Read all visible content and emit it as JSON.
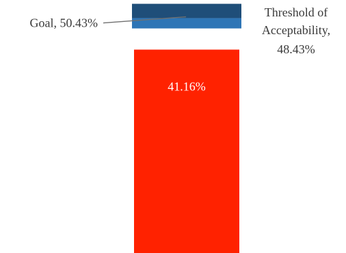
{
  "chart_data": {
    "type": "bar",
    "orientation": "vertical",
    "title": "",
    "xlabel": "",
    "ylabel": "",
    "ylim": [
      0,
      51.2
    ],
    "grid": false,
    "legend": "none",
    "series": [
      {
        "name": "",
        "values": [
          41.16
        ],
        "data_label": "41.16%",
        "color": "#ff2200"
      }
    ],
    "reference_bands": [
      {
        "name": "Goal",
        "value": 50.43,
        "label_name": "Goal",
        "label_value": "50.43%",
        "color": "#1f4e79"
      },
      {
        "name": "Threshold of Acceptability",
        "value": 48.43,
        "label_line1": "Threshold of",
        "label_line2": "Acceptability,",
        "label_value": "48.43%",
        "color": "#2e75b6"
      }
    ]
  }
}
